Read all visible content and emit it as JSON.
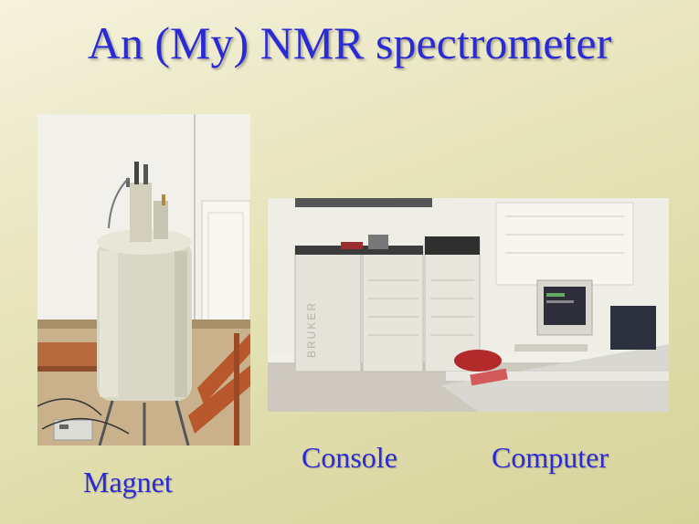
{
  "slide": {
    "title": "An (My) NMR spectrometer",
    "captions": {
      "magnet": "Magnet",
      "console": "Console",
      "computer": "Computer"
    },
    "colors": {
      "text": "#2a2ad6",
      "background": "#e6e3b8"
    },
    "photos": {
      "magnet": {
        "logo_text": ""
      },
      "console": {
        "logo_text": "BRUKER"
      }
    }
  }
}
